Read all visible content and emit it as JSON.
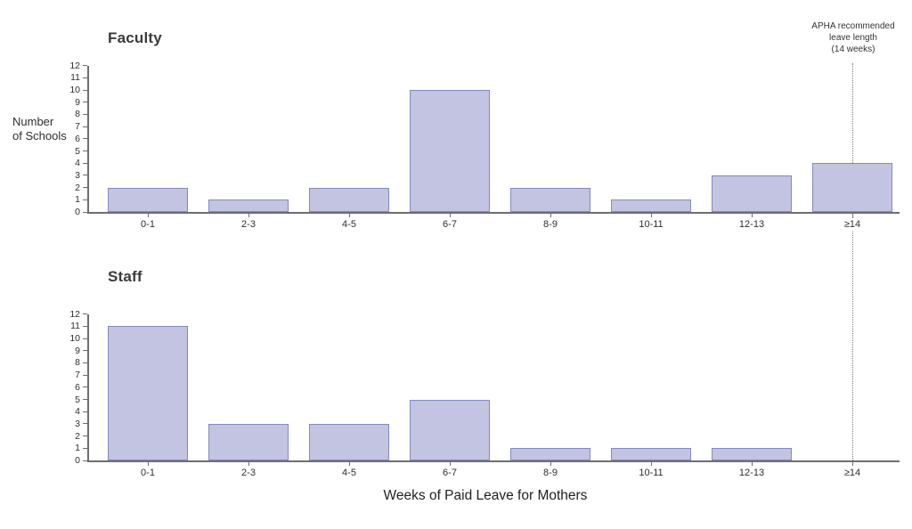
{
  "figure": {
    "annotation": {
      "lines": [
        "APHA recommended",
        "leave length",
        "(14 weeks)"
      ]
    },
    "y_axis_title_lines": [
      "Number",
      "of Schools"
    ],
    "colors": {
      "bar_fill": "#c3c4e1",
      "bar_border": "#8489c2",
      "axis": "#6e6e72",
      "refline": "#808080"
    }
  },
  "chart_data": {
    "type": "bar",
    "layout": "two stacked panels sharing one x-axis title",
    "categories": [
      "0-1",
      "2-3",
      "4-5",
      "6-7",
      "8-9",
      "10-11",
      "12-13",
      "≥14"
    ],
    "series": [
      {
        "name": "Faculty",
        "values": [
          2,
          1,
          2,
          10,
          2,
          1,
          3,
          4
        ]
      },
      {
        "name": "Staff",
        "values": [
          11,
          3,
          3,
          5,
          1,
          1,
          1,
          0
        ]
      }
    ],
    "title": "",
    "xlabel": "Weeks of Paid Leave for Mothers",
    "ylabel": "Number of Schools",
    "ylim": [
      0,
      12
    ],
    "yticks": [
      0,
      1,
      2,
      3,
      4,
      5,
      6,
      7,
      8,
      9,
      10,
      11,
      12
    ],
    "grid": false,
    "legend": "none",
    "annotation": "APHA recommended leave length (14 weeks)",
    "annotation_at_category": "≥14"
  }
}
